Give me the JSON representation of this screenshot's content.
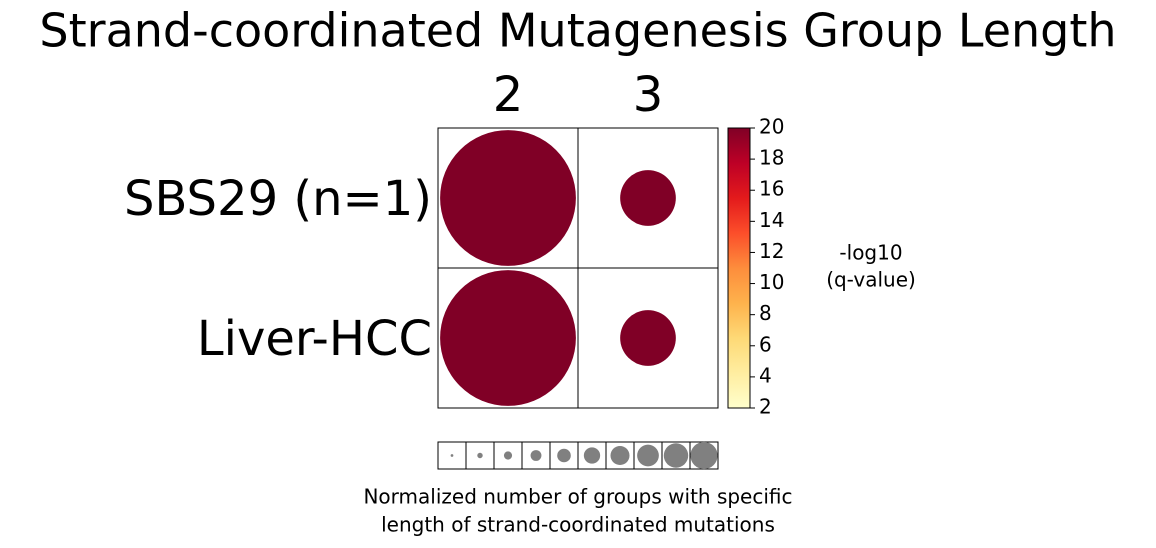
{
  "chart_data": {
    "type": "bubble-grid",
    "title": "Strand-coordinated Mutagenesis Group Length",
    "rows": [
      "SBS29 (n=1)",
      "Liver-HCC"
    ],
    "columns": [
      "2",
      "3"
    ],
    "values": [
      [
        20,
        20
      ],
      [
        20,
        20
      ]
    ],
    "sizes": [
      [
        1.0,
        0.41
      ],
      [
        1.0,
        0.41
      ]
    ],
    "colormap": [
      "#ffffcc",
      "#ffeda0",
      "#fed976",
      "#feb24c",
      "#fd8d3c",
      "#fc4e2a",
      "#e31a1c",
      "#bd0026",
      "#800026"
    ],
    "clim": [
      2,
      20
    ],
    "cticks": [
      2,
      4,
      6,
      8,
      10,
      12,
      14,
      16,
      18,
      20
    ],
    "colorbar_label": [
      "-log10",
      "(q-value)"
    ],
    "size_legend": [
      0.1,
      0.2,
      0.3,
      0.4,
      0.5,
      0.6,
      0.7,
      0.8,
      0.9,
      1.0
    ],
    "size_legend_color": "#808080",
    "xlabel": [
      "Normalized number of groups with specific",
      "length of strand-coordinated mutations"
    ]
  }
}
